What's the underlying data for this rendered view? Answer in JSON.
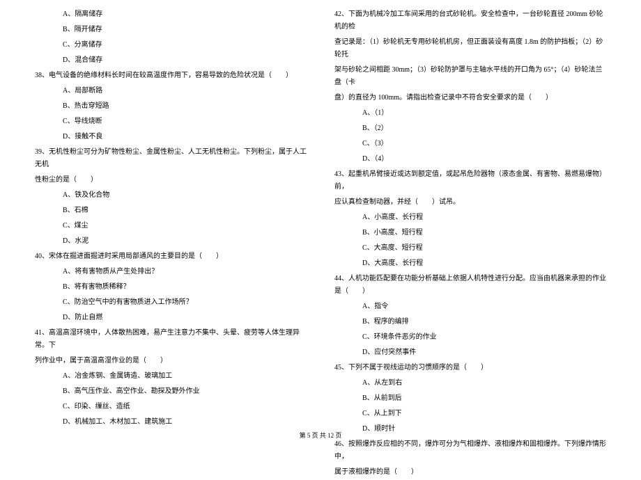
{
  "left": {
    "q37_opts": [
      "A、隔离储存",
      "B、隔开储存",
      "C、分离储存",
      "D、混合储存"
    ],
    "q38": "38、电气设备的绝缘材料长时间在较高温度作用下，容易导致的危险状况是（　　）",
    "q38_opts": [
      "A、局部断路",
      "B、热击穿短路",
      "C、导线烧断",
      "D、接触不良"
    ],
    "q39": "39、无机性粉尘可分为矿物性粉尘、金属性粉尘、人工无机性粉尘。下列粉尘，属于人工无机",
    "q39_cont": "性粉尘的是（　　）",
    "q39_opts": [
      "A、铁及化合物",
      "B、石棉",
      "C、煤尘",
      "D、水泥"
    ],
    "q40": "40、宋体在掘进面掘进时采用局部通风的主要目的是（　　）",
    "q40_opts": [
      "A、将有害物质从产生处排出？",
      "B、将有害物质稀释？",
      "C、防治空气中的有害物质进入工作场所？",
      "D、防止自燃"
    ],
    "q41": "41、高温高湿环境中，人体散热困难，易产生注意力不集中、头晕、疲劳等人体生理异常。下",
    "q41_cont": "列作业中，属于高温高湿作业的是（　　）",
    "q41_opts": [
      "A、冶金炼钢、金属铸造、玻璃加工",
      "B、高气压作业、高空作业、勘探及野外作业",
      "C、印染、缫丝、造纸",
      "D、机械加工、木材加工、建筑施工"
    ]
  },
  "right": {
    "q42": "42、下面为机械冷加工车间采用的台式砂轮机。安全检查中，一台砂轮直径 200mm 砂轮机的检",
    "q42_l2": "查记录是：（1）砂轮机无专用砂轮机机房，但正面装设有高度 1.8m 的防护挡板；（2）砂轮托",
    "q42_l3": "架与砂轮之间相距 30mm；（3）砂轮防护罩与主轴水平线的开口角为 65°；（4）砂轮法兰盘（卡",
    "q42_l4": "盘）的直径为 100mm。请指出检查记录中不符合安全要求的是（　　）",
    "q42_opts": [
      "A、（1）",
      "B、（2）",
      "C、（3）",
      "D、（4）"
    ],
    "q43": "43、起重机吊臂接近或达到额定值，或起吊危险器物（液态金属、有害物、易燃易爆物）前，",
    "q43_cont": "应认真检查制动器，并经（　　）试吊。",
    "q43_opts": [
      "A、小高度、长行程",
      "B、小高度、短行程",
      "C、大高度、短行程",
      "D、大高度、长行程"
    ],
    "q44": "44、人机功能匹配要在功能分析基础上依据人机特性进行分配。应当由机器来承担的作业是（　　）",
    "q44_opts": [
      "A、指令",
      "B、程序的编排",
      "C、环境条件恶劣的作业",
      "D、应付突然事件"
    ],
    "q45": "45、下列不属于视线运动的习惯顺序的是（　　）",
    "q45_opts": [
      "A、从左到右",
      "B、从前到后",
      "C、从上到下",
      "D、顺时针"
    ],
    "q46": "46、按照爆炸反应相的不同，爆炸可分为气相爆炸、液相爆炸和固相爆炸。下列爆炸情形中，",
    "q46_cont": "属于液相爆炸的是（　　）"
  },
  "footer": "第 5 页 共 12 页"
}
